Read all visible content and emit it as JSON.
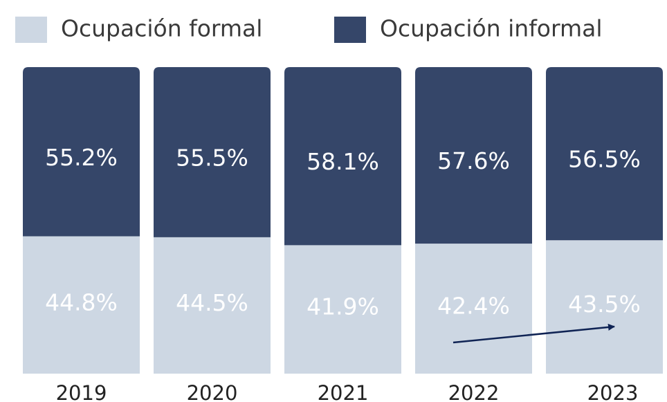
{
  "chart_data": {
    "type": "stacked_bar",
    "categories": [
      "2019",
      "2020",
      "2021",
      "2022",
      "2023"
    ],
    "series": [
      {
        "name": "Ocupación formal",
        "color": "#cdd7e3",
        "values": [
          44.8,
          44.5,
          41.9,
          42.4,
          43.5
        ],
        "value_labels": [
          "44.8%",
          "44.5%",
          "41.9%",
          "42.4%",
          "43.5%"
        ]
      },
      {
        "name": "Ocupación informal",
        "color": "#354669",
        "values": [
          55.2,
          55.5,
          58.1,
          57.6,
          56.5
        ],
        "value_labels": [
          "55.2%",
          "55.5%",
          "58.1%",
          "57.6%",
          "56.5%"
        ]
      }
    ],
    "ylim": [
      0,
      100
    ],
    "legend": "top"
  }
}
